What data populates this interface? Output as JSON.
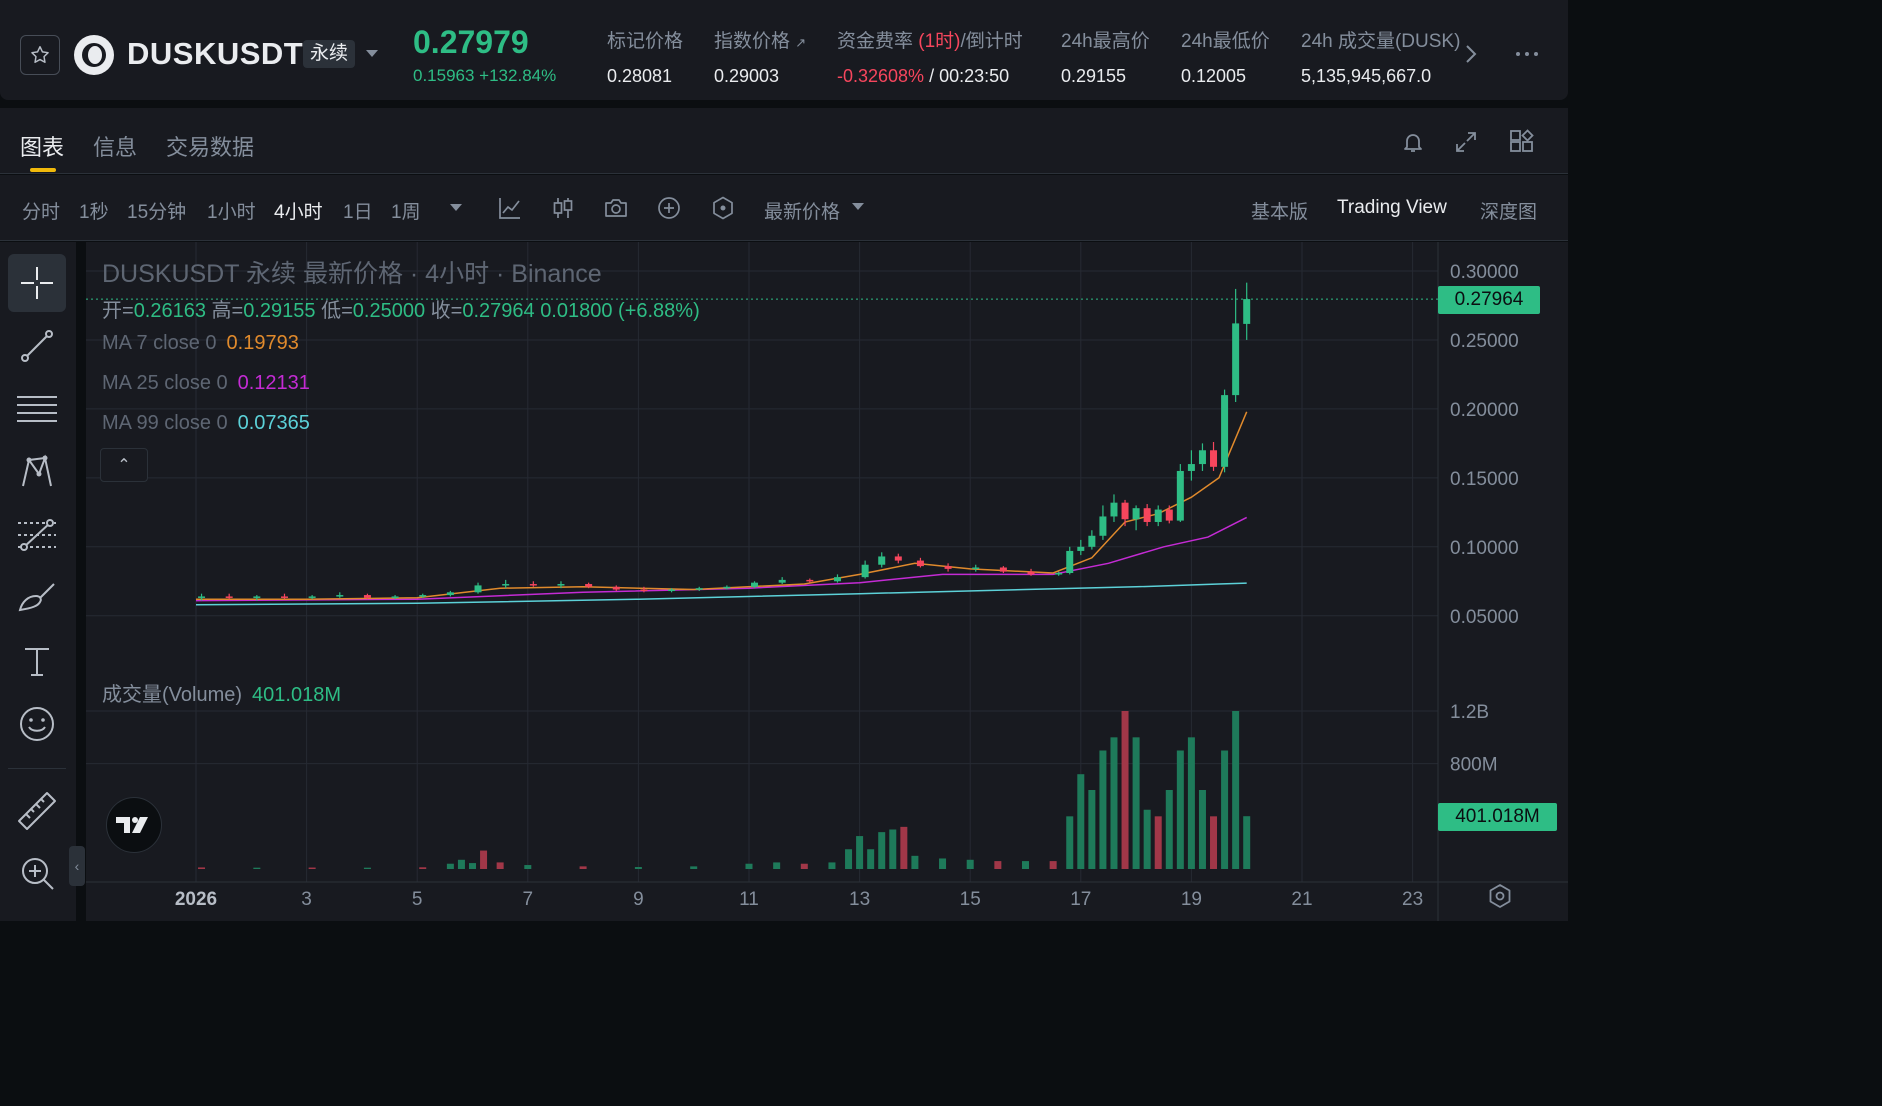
{
  "header": {
    "symbol": "DUSKUSDT",
    "contract_type": "永续",
    "last_price": "0.27979",
    "price_change": "0.15963 +132.84%",
    "stats": {
      "mark_label": "标记价格",
      "mark_value": "0.28081",
      "index_label": "指数价格",
      "index_arrow": "↗",
      "index_value": "0.29003",
      "funding_label_prefix": "资金费率 ",
      "funding_label_highlight": "(1时)",
      "funding_label_suffix": "/倒计时",
      "funding_rate": "-0.32608%",
      "funding_separator": " / ",
      "countdown": "00:23:50",
      "high_label": "24h最高价",
      "high_value": "0.29155",
      "low_label": "24h最低价",
      "low_value": "0.12005",
      "volume_label": "24h 成交量(DUSK)",
      "volume_value": "5,135,945,667.0"
    }
  },
  "tabs": [
    {
      "label": "图表",
      "active": true
    },
    {
      "label": "信息",
      "active": false
    },
    {
      "label": "交易数据",
      "active": false
    }
  ],
  "toolbar": {
    "timeframes": [
      {
        "label": "分时",
        "active": false
      },
      {
        "label": "1秒",
        "active": false
      },
      {
        "label": "15分钟",
        "active": false
      },
      {
        "label": "1小时",
        "active": false
      },
      {
        "label": "4小时",
        "active": true
      },
      {
        "label": "1日",
        "active": false
      },
      {
        "label": "1周",
        "active": false
      }
    ],
    "price_type": "最新价格",
    "views": [
      {
        "label": "基本版",
        "active": false
      },
      {
        "label": "Trading View",
        "active": true
      },
      {
        "label": "深度图",
        "active": false
      }
    ]
  },
  "draw_tools": [
    "crosshair-icon",
    "trend-line-icon",
    "horizontal-lines-icon",
    "pattern-icon",
    "fib-icon",
    "brush-icon",
    "text-icon",
    "emoji-icon",
    "ruler-icon",
    "zoom-in-icon"
  ],
  "chart": {
    "title": "DUSKUSDT 永续 最新价格 · 4小时 · Binance",
    "ohlc": {
      "open_label": "开=",
      "open": "0.26163",
      "high_label": "高=",
      "high": "0.29155",
      "low_label": "低=",
      "low": "0.25000",
      "close_label": "收=",
      "close": "0.27964",
      "change": "0.01800 (+6.88%)"
    },
    "ma": [
      {
        "label": "MA 7 close 0",
        "value": "0.19793",
        "color": "#e08a2c"
      },
      {
        "label": "MA 25 close 0",
        "value": "0.12131",
        "color": "#c42bd4"
      },
      {
        "label": "MA 99 close 0",
        "value": "0.07365",
        "color": "#5cd1d8"
      }
    ],
    "volume_label": "成交量(Volume)",
    "volume_value": "401.018M",
    "current_price_tag": "0.27964",
    "volume_tag": "401.018M",
    "collapse_glyph": "⌃",
    "handle_glyph": "‹"
  },
  "colors": {
    "up": "#2ebd85",
    "down": "#f6465d",
    "bg": "#181a20",
    "grid": "#262a33"
  },
  "chart_data": {
    "type": "candlestick",
    "x_axis_labels": [
      "2026",
      "3",
      "5",
      "7",
      "9",
      "11",
      "13",
      "15",
      "17",
      "19",
      "21",
      "23"
    ],
    "y_axis_labels": [
      "0.30000",
      "0.25000",
      "0.20000",
      "0.15000",
      "0.10000",
      "0.05000"
    ],
    "ylim": [
      0.0,
      0.31
    ],
    "volume_axis_labels": [
      "1.2B",
      "800M"
    ],
    "volume_ylim": [
      0,
      1500000000
    ],
    "candles": [
      {
        "day": 1.1,
        "o": 0.063,
        "h": 0.066,
        "l": 0.061,
        "c": 0.064
      },
      {
        "day": 1.6,
        "o": 0.064,
        "h": 0.066,
        "l": 0.062,
        "c": 0.063
      },
      {
        "day": 2.1,
        "o": 0.063,
        "h": 0.065,
        "l": 0.061,
        "c": 0.064
      },
      {
        "day": 2.6,
        "o": 0.064,
        "h": 0.066,
        "l": 0.062,
        "c": 0.063
      },
      {
        "day": 3.1,
        "o": 0.063,
        "h": 0.065,
        "l": 0.062,
        "c": 0.064
      },
      {
        "day": 3.6,
        "o": 0.064,
        "h": 0.067,
        "l": 0.063,
        "c": 0.065
      },
      {
        "day": 4.1,
        "o": 0.065,
        "h": 0.066,
        "l": 0.062,
        "c": 0.063
      },
      {
        "day": 4.6,
        "o": 0.063,
        "h": 0.065,
        "l": 0.062,
        "c": 0.064
      },
      {
        "day": 5.1,
        "o": 0.064,
        "h": 0.066,
        "l": 0.063,
        "c": 0.065
      },
      {
        "day": 5.6,
        "o": 0.065,
        "h": 0.068,
        "l": 0.064,
        "c": 0.067
      },
      {
        "day": 6.1,
        "o": 0.067,
        "h": 0.074,
        "l": 0.066,
        "c": 0.072
      },
      {
        "day": 6.6,
        "o": 0.072,
        "h": 0.076,
        "l": 0.07,
        "c": 0.073
      },
      {
        "day": 7.1,
        "o": 0.073,
        "h": 0.075,
        "l": 0.071,
        "c": 0.072
      },
      {
        "day": 7.6,
        "o": 0.072,
        "h": 0.075,
        "l": 0.07,
        "c": 0.073
      },
      {
        "day": 8.1,
        "o": 0.073,
        "h": 0.074,
        "l": 0.07,
        "c": 0.071
      },
      {
        "day": 8.6,
        "o": 0.071,
        "h": 0.072,
        "l": 0.068,
        "c": 0.069
      },
      {
        "day": 9.1,
        "o": 0.069,
        "h": 0.071,
        "l": 0.067,
        "c": 0.068
      },
      {
        "day": 9.6,
        "o": 0.068,
        "h": 0.07,
        "l": 0.067,
        "c": 0.069
      },
      {
        "day": 10.1,
        "o": 0.069,
        "h": 0.071,
        "l": 0.068,
        "c": 0.07
      },
      {
        "day": 10.6,
        "o": 0.07,
        "h": 0.072,
        "l": 0.069,
        "c": 0.071
      },
      {
        "day": 11.1,
        "o": 0.071,
        "h": 0.075,
        "l": 0.07,
        "c": 0.074
      },
      {
        "day": 11.6,
        "o": 0.074,
        "h": 0.078,
        "l": 0.073,
        "c": 0.076
      },
      {
        "day": 12.1,
        "o": 0.076,
        "h": 0.077,
        "l": 0.074,
        "c": 0.075
      },
      {
        "day": 12.6,
        "o": 0.075,
        "h": 0.08,
        "l": 0.074,
        "c": 0.078
      },
      {
        "day": 13.1,
        "o": 0.078,
        "h": 0.09,
        "l": 0.077,
        "c": 0.087
      },
      {
        "day": 13.4,
        "o": 0.087,
        "h": 0.096,
        "l": 0.085,
        "c": 0.093
      },
      {
        "day": 13.7,
        "o": 0.093,
        "h": 0.095,
        "l": 0.088,
        "c": 0.09
      },
      {
        "day": 14.1,
        "o": 0.09,
        "h": 0.092,
        "l": 0.085,
        "c": 0.086
      },
      {
        "day": 14.6,
        "o": 0.086,
        "h": 0.088,
        "l": 0.082,
        "c": 0.084
      },
      {
        "day": 15.1,
        "o": 0.084,
        "h": 0.087,
        "l": 0.082,
        "c": 0.085
      },
      {
        "day": 15.6,
        "o": 0.085,
        "h": 0.086,
        "l": 0.081,
        "c": 0.082
      },
      {
        "day": 16.1,
        "o": 0.082,
        "h": 0.084,
        "l": 0.079,
        "c": 0.08
      },
      {
        "day": 16.6,
        "o": 0.08,
        "h": 0.082,
        "l": 0.079,
        "c": 0.081
      },
      {
        "day": 16.8,
        "o": 0.081,
        "h": 0.1,
        "l": 0.08,
        "c": 0.097
      },
      {
        "day": 17.0,
        "o": 0.097,
        "h": 0.105,
        "l": 0.094,
        "c": 0.1
      },
      {
        "day": 17.2,
        "o": 0.1,
        "h": 0.112,
        "l": 0.098,
        "c": 0.108
      },
      {
        "day": 17.4,
        "o": 0.108,
        "h": 0.13,
        "l": 0.105,
        "c": 0.122
      },
      {
        "day": 17.6,
        "o": 0.122,
        "h": 0.138,
        "l": 0.118,
        "c": 0.132
      },
      {
        "day": 17.8,
        "o": 0.132,
        "h": 0.134,
        "l": 0.115,
        "c": 0.12
      },
      {
        "day": 18.0,
        "o": 0.12,
        "h": 0.13,
        "l": 0.112,
        "c": 0.128
      },
      {
        "day": 18.2,
        "o": 0.128,
        "h": 0.131,
        "l": 0.115,
        "c": 0.118
      },
      {
        "day": 18.4,
        "o": 0.118,
        "h": 0.13,
        "l": 0.115,
        "c": 0.127
      },
      {
        "day": 18.6,
        "o": 0.127,
        "h": 0.13,
        "l": 0.117,
        "c": 0.119
      },
      {
        "day": 18.8,
        "o": 0.119,
        "h": 0.16,
        "l": 0.118,
        "c": 0.155
      },
      {
        "day": 19.0,
        "o": 0.155,
        "h": 0.17,
        "l": 0.148,
        "c": 0.16
      },
      {
        "day": 19.2,
        "o": 0.16,
        "h": 0.175,
        "l": 0.155,
        "c": 0.17
      },
      {
        "day": 19.4,
        "o": 0.17,
        "h": 0.176,
        "l": 0.155,
        "c": 0.158
      },
      {
        "day": 19.6,
        "o": 0.158,
        "h": 0.214,
        "l": 0.154,
        "c": 0.21
      },
      {
        "day": 19.8,
        "o": 0.21,
        "h": 0.287,
        "l": 0.205,
        "c": 0.262
      },
      {
        "day": 20.0,
        "o": 0.26163,
        "h": 0.29155,
        "l": 0.25,
        "c": 0.27964
      }
    ],
    "ma7": [
      [
        1,
        0.062
      ],
      [
        3,
        0.062
      ],
      [
        5,
        0.063
      ],
      [
        6.5,
        0.07
      ],
      [
        8,
        0.071
      ],
      [
        10,
        0.069
      ],
      [
        12,
        0.073
      ],
      [
        13,
        0.08
      ],
      [
        14,
        0.088
      ],
      [
        15,
        0.084
      ],
      [
        16.5,
        0.081
      ],
      [
        17.2,
        0.092
      ],
      [
        17.8,
        0.118
      ],
      [
        18.4,
        0.124
      ],
      [
        19,
        0.136
      ],
      [
        19.5,
        0.15
      ],
      [
        20,
        0.19793
      ]
    ],
    "ma25": [
      [
        1,
        0.061
      ],
      [
        5,
        0.062
      ],
      [
        8,
        0.067
      ],
      [
        11,
        0.07
      ],
      [
        13,
        0.074
      ],
      [
        14.5,
        0.08
      ],
      [
        16.5,
        0.08
      ],
      [
        17.5,
        0.088
      ],
      [
        18.5,
        0.1
      ],
      [
        19.3,
        0.107
      ],
      [
        20,
        0.12131
      ]
    ],
    "ma99": [
      [
        1,
        0.058
      ],
      [
        5,
        0.059
      ],
      [
        9,
        0.062
      ],
      [
        13,
        0.066
      ],
      [
        16,
        0.069
      ],
      [
        18,
        0.071
      ],
      [
        19.5,
        0.073
      ],
      [
        20,
        0.07365
      ]
    ],
    "volume": [
      {
        "day": 1.1,
        "v": 12000000,
        "up": false
      },
      {
        "day": 2.1,
        "v": 10000000,
        "up": true
      },
      {
        "day": 3.1,
        "v": 11000000,
        "up": false
      },
      {
        "day": 4.1,
        "v": 10000000,
        "up": true
      },
      {
        "day": 5.1,
        "v": 13000000,
        "up": false
      },
      {
        "day": 5.6,
        "v": 40000000,
        "up": true
      },
      {
        "day": 5.8,
        "v": 70000000,
        "up": true
      },
      {
        "day": 6.0,
        "v": 45000000,
        "up": true
      },
      {
        "day": 6.2,
        "v": 140000000,
        "up": false
      },
      {
        "day": 6.5,
        "v": 50000000,
        "up": false
      },
      {
        "day": 7.0,
        "v": 30000000,
        "up": true
      },
      {
        "day": 8.0,
        "v": 20000000,
        "up": false
      },
      {
        "day": 9.0,
        "v": 15000000,
        "up": true
      },
      {
        "day": 10.0,
        "v": 20000000,
        "up": true
      },
      {
        "day": 11.0,
        "v": 40000000,
        "up": true
      },
      {
        "day": 11.5,
        "v": 50000000,
        "up": true
      },
      {
        "day": 12.0,
        "v": 40000000,
        "up": false
      },
      {
        "day": 12.5,
        "v": 50000000,
        "up": true
      },
      {
        "day": 12.8,
        "v": 150000000,
        "up": true
      },
      {
        "day": 13.0,
        "v": 250000000,
        "up": true
      },
      {
        "day": 13.2,
        "v": 150000000,
        "up": true
      },
      {
        "day": 13.4,
        "v": 280000000,
        "up": true
      },
      {
        "day": 13.6,
        "v": 300000000,
        "up": true
      },
      {
        "day": 13.8,
        "v": 320000000,
        "up": false
      },
      {
        "day": 14.0,
        "v": 100000000,
        "up": true
      },
      {
        "day": 14.5,
        "v": 80000000,
        "up": true
      },
      {
        "day": 15.0,
        "v": 70000000,
        "up": true
      },
      {
        "day": 15.5,
        "v": 60000000,
        "up": false
      },
      {
        "day": 16.0,
        "v": 60000000,
        "up": true
      },
      {
        "day": 16.5,
        "v": 60000000,
        "up": false
      },
      {
        "day": 16.8,
        "v": 400000000,
        "up": true
      },
      {
        "day": 17.0,
        "v": 720000000,
        "up": true
      },
      {
        "day": 17.2,
        "v": 600000000,
        "up": true
      },
      {
        "day": 17.4,
        "v": 900000000,
        "up": true
      },
      {
        "day": 17.6,
        "v": 1000000000,
        "up": true
      },
      {
        "day": 17.8,
        "v": 1200000000,
        "up": false
      },
      {
        "day": 18.0,
        "v": 1000000000,
        "up": true
      },
      {
        "day": 18.2,
        "v": 450000000,
        "up": true
      },
      {
        "day": 18.4,
        "v": 400000000,
        "up": false
      },
      {
        "day": 18.6,
        "v": 600000000,
        "up": true
      },
      {
        "day": 18.8,
        "v": 900000000,
        "up": true
      },
      {
        "day": 19.0,
        "v": 1000000000,
        "up": true
      },
      {
        "day": 19.2,
        "v": 600000000,
        "up": true
      },
      {
        "day": 19.4,
        "v": 400000000,
        "up": false
      },
      {
        "day": 19.6,
        "v": 900000000,
        "up": true
      },
      {
        "day": 19.8,
        "v": 1200000000,
        "up": true
      },
      {
        "day": 20.0,
        "v": 401018000,
        "up": true
      }
    ]
  }
}
